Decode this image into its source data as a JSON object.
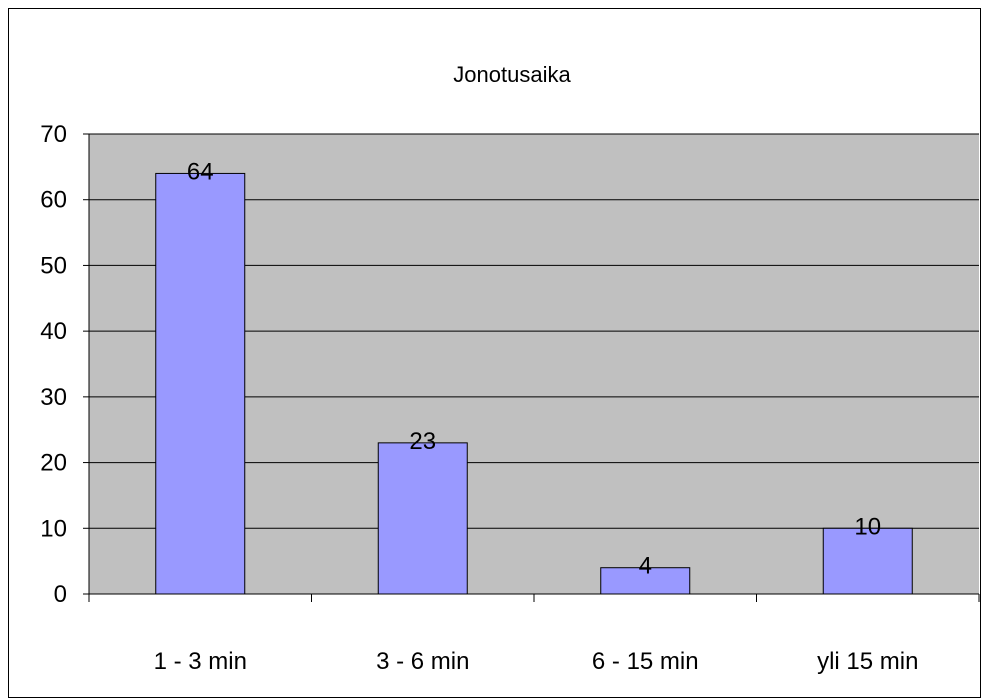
{
  "chart_data": {
    "type": "bar",
    "title": "Jonotusaika",
    "categories": [
      "1 - 3 min",
      "3 - 6 min",
      "6 - 15 min",
      "yli 15 min"
    ],
    "values": [
      64,
      23,
      4,
      10
    ],
    "ylim": [
      0,
      70
    ],
    "yticks": [
      "0",
      "10",
      "20",
      "30",
      "40",
      "50",
      "60",
      "70"
    ],
    "xlabel": "",
    "ylabel": "",
    "grid": true,
    "data_labels": [
      "64",
      "23",
      "4",
      "10"
    ],
    "colors": {
      "bar_fill": "#9999ff",
      "bar_stroke": "#000000",
      "plot_background": "#c0c0c0",
      "gridline": "#000000"
    }
  }
}
